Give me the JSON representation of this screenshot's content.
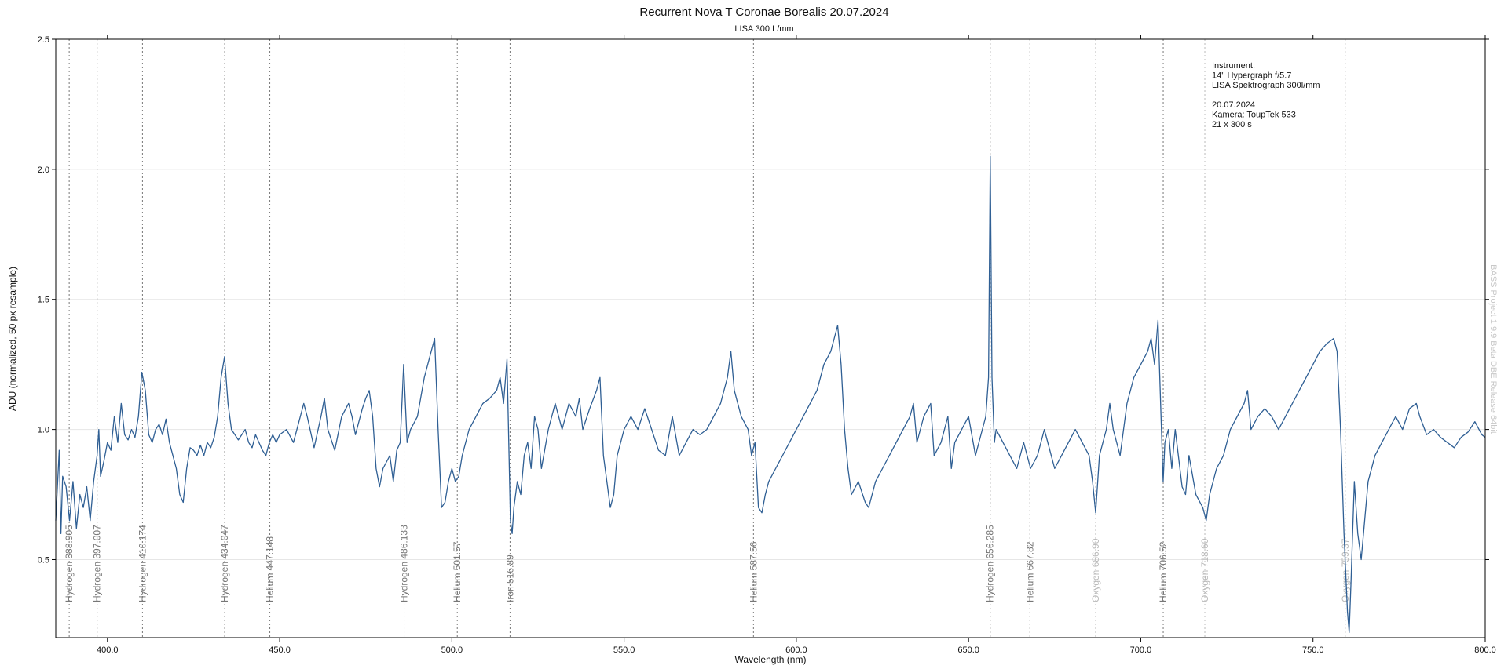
{
  "chart_data": {
    "type": "line",
    "title": "Recurrent Nova T Coronae Borealis  20.07.2024",
    "subtitle": "LISA 300 L/mm",
    "x_label": "Wavelength (nm)",
    "y_label": "ADU (normalized, 50 px resample)",
    "watermark": "BASS Project 1.9.9 Beta DBE Release 64bit",
    "annotation": [
      "Instrument:",
      "14'' Hypergraph f/5.7",
      "LISA Spektrograph 300l/mm",
      "20.07.2024",
      "Kamera: ToupTek 533",
      "21 x 300 s"
    ],
    "xlim": [
      385,
      800
    ],
    "ylim": [
      0.2,
      2.5
    ],
    "xticks": [
      {
        "value": 400,
        "label": "400.0"
      },
      {
        "value": 450,
        "label": "450.0"
      },
      {
        "value": 500,
        "label": "500.0"
      },
      {
        "value": 550,
        "label": "550.0"
      },
      {
        "value": 600,
        "label": "600.0"
      },
      {
        "value": 650,
        "label": "650.0"
      },
      {
        "value": 700,
        "label": "700.0"
      },
      {
        "value": 750,
        "label": "750.0"
      },
      {
        "value": 800,
        "label": "800.0"
      }
    ],
    "yticks": [
      0.5,
      {
        "value": 1,
        "label": "1.0"
      },
      1.5,
      {
        "value": 2,
        "label": "2.0"
      },
      2.5
    ],
    "grid": true,
    "lines": [
      {
        "label": "Hydrogen 388.905",
        "x": 388.905,
        "color": "#777777"
      },
      {
        "label": "Hydrogen 397.007",
        "x": 397.007,
        "color": "#777777"
      },
      {
        "label": "Hydrogen 410.174",
        "x": 410.174,
        "color": "#777777"
      },
      {
        "label": "Hydrogen 434.047",
        "x": 434.047,
        "color": "#777777"
      },
      {
        "label": "Helium 447.148",
        "x": 447.148,
        "color": "#777777"
      },
      {
        "label": "Hydrogen 486.133",
        "x": 486.133,
        "color": "#777777"
      },
      {
        "label": "Helium 501.57",
        "x": 501.57,
        "color": "#777777"
      },
      {
        "label": "Iron 516.89",
        "x": 516.89,
        "color": "#777777"
      },
      {
        "label": "Helium 587.56",
        "x": 587.56,
        "color": "#777777"
      },
      {
        "label": "Hydrogen 656.285",
        "x": 656.285,
        "color": "#777777"
      },
      {
        "label": "Helium 667.82",
        "x": 667.82,
        "color": "#777777"
      },
      {
        "label": "Oxygen 686.90",
        "x": 686.9,
        "color": "#bbbbbb"
      },
      {
        "label": "Helium 706.52",
        "x": 706.52,
        "color": "#777777"
      },
      {
        "label": "Oxygen 718.60",
        "x": 718.6,
        "color": "#bbbbbb"
      },
      {
        "label": "Oxygen 759.37",
        "x": 759.37,
        "color": "#bbbbbb"
      }
    ],
    "series": [
      {
        "name": "Spectrum",
        "color": "#2f5f94",
        "x": [
          385,
          386,
          386.5,
          387,
          388,
          389,
          390,
          391,
          392,
          393,
          394,
          395,
          396,
          397,
          397.5,
          398,
          399,
          400,
          401,
          402,
          403,
          404,
          405,
          406,
          407,
          408,
          409,
          410,
          411,
          412,
          413,
          414,
          415,
          416,
          417,
          418,
          419,
          420,
          421,
          422,
          423,
          424,
          425,
          426,
          427,
          428,
          429,
          430,
          431,
          432,
          433,
          434,
          435,
          436,
          437,
          438,
          439,
          440,
          441,
          442,
          443,
          444,
          445,
          446,
          447,
          448,
          449,
          450,
          452,
          454,
          456,
          457,
          458,
          460,
          462,
          463,
          464,
          466,
          468,
          470,
          471,
          472,
          474,
          475,
          476,
          477,
          478,
          479,
          480,
          482,
          483,
          484,
          485,
          486,
          487,
          488,
          490,
          492,
          494,
          495,
          496,
          497,
          498,
          499,
          500,
          501,
          502,
          503,
          505,
          507,
          509,
          511,
          513,
          514,
          515,
          516,
          517,
          517.5,
          518,
          519,
          520,
          521,
          522,
          523,
          524,
          525,
          526,
          528,
          530,
          532,
          534,
          536,
          537,
          538,
          540,
          542,
          543,
          544,
          545,
          546,
          547,
          548,
          550,
          552,
          554,
          556,
          558,
          560,
          562,
          564,
          566,
          568,
          570,
          572,
          574,
          576,
          578,
          580,
          581,
          582,
          584,
          586,
          587,
          588,
          589,
          590,
          591,
          592,
          594,
          596,
          598,
          600,
          602,
          604,
          606,
          608,
          610,
          611,
          612,
          613,
          614,
          615,
          616,
          618,
          620,
          621,
          623,
          625,
          627,
          629,
          631,
          633,
          634,
          635,
          637,
          639,
          640,
          642,
          644,
          645,
          646,
          648,
          650,
          652,
          654,
          655,
          655.8,
          656.3,
          656.8,
          657.5,
          658,
          660,
          662,
          664,
          666,
          668,
          670,
          672,
          673,
          675,
          677,
          679,
          681,
          683,
          685,
          686,
          686.9,
          688,
          690,
          691,
          692,
          694,
          696,
          698,
          700,
          702,
          703,
          704,
          705,
          706,
          706.5,
          707,
          708,
          709,
          710,
          712,
          713,
          714,
          716,
          718,
          719,
          720,
          722,
          724,
          726,
          728,
          730,
          731,
          732,
          734,
          736,
          738,
          740,
          742,
          744,
          746,
          748,
          750,
          752,
          754,
          756,
          757,
          758,
          759,
          760,
          760.5,
          761,
          762,
          763,
          764,
          765,
          766,
          768,
          770,
          772,
          774,
          776,
          778,
          780,
          781,
          783,
          785,
          787,
          789,
          791,
          793,
          795,
          797,
          799,
          800
        ],
        "values": [
          0.65,
          0.92,
          0.6,
          0.82,
          0.78,
          0.65,
          0.8,
          0.62,
          0.75,
          0.7,
          0.78,
          0.65,
          0.8,
          0.9,
          1.0,
          0.82,
          0.88,
          0.95,
          0.92,
          1.05,
          0.95,
          1.1,
          0.98,
          0.96,
          1.0,
          0.97,
          1.05,
          1.22,
          1.15,
          0.98,
          0.95,
          1.0,
          1.02,
          0.98,
          1.04,
          0.95,
          0.9,
          0.85,
          0.75,
          0.72,
          0.85,
          0.93,
          0.92,
          0.9,
          0.94,
          0.9,
          0.95,
          0.93,
          0.97,
          1.05,
          1.2,
          1.28,
          1.1,
          1.0,
          0.98,
          0.96,
          0.98,
          1.0,
          0.95,
          0.93,
          0.98,
          0.95,
          0.92,
          0.9,
          0.95,
          0.98,
          0.95,
          0.98,
          1.0,
          0.95,
          1.05,
          1.1,
          1.05,
          0.93,
          1.05,
          1.12,
          1.0,
          0.92,
          1.05,
          1.1,
          1.05,
          0.98,
          1.08,
          1.12,
          1.15,
          1.05,
          0.85,
          0.78,
          0.85,
          0.9,
          0.8,
          0.92,
          0.95,
          1.25,
          0.95,
          1.0,
          1.05,
          1.2,
          1.3,
          1.35,
          1.0,
          0.7,
          0.72,
          0.8,
          0.85,
          0.8,
          0.82,
          0.9,
          1.0,
          1.05,
          1.1,
          1.12,
          1.15,
          1.2,
          1.1,
          1.27,
          0.65,
          0.6,
          0.7,
          0.8,
          0.75,
          0.9,
          0.95,
          0.85,
          1.05,
          1.0,
          0.85,
          1.0,
          1.1,
          1.0,
          1.1,
          1.05,
          1.12,
          1.0,
          1.08,
          1.15,
          1.2,
          0.9,
          0.8,
          0.7,
          0.75,
          0.9,
          1.0,
          1.05,
          1.0,
          1.08,
          1.0,
          0.92,
          0.9,
          1.05,
          0.9,
          0.95,
          1.0,
          0.98,
          1.0,
          1.05,
          1.1,
          1.2,
          1.3,
          1.15,
          1.05,
          1.0,
          0.9,
          0.95,
          0.7,
          0.68,
          0.75,
          0.8,
          0.85,
          0.9,
          0.95,
          1.0,
          1.05,
          1.1,
          1.15,
          1.25,
          1.3,
          1.35,
          1.4,
          1.25,
          1.0,
          0.85,
          0.75,
          0.8,
          0.72,
          0.7,
          0.8,
          0.85,
          0.9,
          0.95,
          1.0,
          1.05,
          1.1,
          0.95,
          1.05,
          1.1,
          0.9,
          0.95,
          1.05,
          0.85,
          0.95,
          1.0,
          1.05,
          0.9,
          1.0,
          1.05,
          1.2,
          2.05,
          1.2,
          0.95,
          1.0,
          0.95,
          0.9,
          0.85,
          0.95,
          0.85,
          0.9,
          1.0,
          0.95,
          0.85,
          0.9,
          0.95,
          1.0,
          0.95,
          0.9,
          0.8,
          0.68,
          0.9,
          1.0,
          1.1,
          1.0,
          0.9,
          1.1,
          1.2,
          1.25,
          1.3,
          1.35,
          1.25,
          1.42,
          1.0,
          0.8,
          0.95,
          1.0,
          0.85,
          1.0,
          0.78,
          0.75,
          0.9,
          0.75,
          0.7,
          0.65,
          0.75,
          0.85,
          0.9,
          1.0,
          1.05,
          1.1,
          1.15,
          1.0,
          1.05,
          1.08,
          1.05,
          1.0,
          1.05,
          1.1,
          1.15,
          1.2,
          1.25,
          1.3,
          1.33,
          1.35,
          1.3,
          1.0,
          0.6,
          0.3,
          0.22,
          0.4,
          0.8,
          0.6,
          0.5,
          0.65,
          0.8,
          0.9,
          0.95,
          1.0,
          1.05,
          1.0,
          1.08,
          1.1,
          1.05,
          0.98,
          1.0,
          0.97,
          0.95,
          0.93,
          0.97,
          0.99,
          1.03,
          0.98,
          0.97
        ]
      }
    ]
  }
}
